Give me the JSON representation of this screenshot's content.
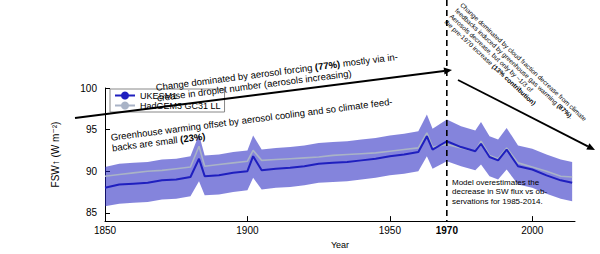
{
  "chart_data": {
    "type": "line",
    "x_label": "Year",
    "y_label": "FSW↑ (W m⁻²)",
    "x": [
      1850,
      1855,
      1860,
      1865,
      1870,
      1875,
      1880,
      1883,
      1885,
      1890,
      1895,
      1900,
      1902,
      1905,
      1910,
      1915,
      1920,
      1925,
      1930,
      1935,
      1940,
      1945,
      1950,
      1955,
      1960,
      1963,
      1965,
      1970,
      1975,
      1980,
      1982,
      1985,
      1988,
      1991,
      1995,
      2000,
      2005,
      2010,
      2014
    ],
    "xlim": [
      1850,
      2015
    ],
    "xticks": [
      1850,
      1900,
      1950,
      2000
    ],
    "ylim": [
      84,
      100
    ],
    "yticks": [
      85,
      90,
      95,
      100
    ],
    "grid": false,
    "legend": "upper left",
    "series": [
      {
        "name": "UKESM1",
        "color": "#1f1fbf",
        "values": [
          88.0,
          88.4,
          88.5,
          88.6,
          88.9,
          89.0,
          89.3,
          91.5,
          89.4,
          89.5,
          89.8,
          90.0,
          91.8,
          90.1,
          90.3,
          90.4,
          90.6,
          90.9,
          91.0,
          91.1,
          91.3,
          91.5,
          91.8,
          92.0,
          92.3,
          94.2,
          92.6,
          93.6,
          92.9,
          92.4,
          93.3,
          91.7,
          91.3,
          92.6,
          90.6,
          90.2,
          89.5,
          88.9,
          88.6
        ],
        "lower": [
          85.8,
          86.1,
          86.2,
          86.3,
          86.6,
          86.7,
          87.0,
          88.8,
          87.1,
          87.2,
          87.5,
          87.7,
          89.2,
          87.8,
          88.0,
          88.1,
          88.3,
          88.6,
          88.7,
          88.8,
          89.0,
          89.2,
          89.5,
          89.7,
          90.0,
          91.8,
          90.3,
          91.2,
          90.6,
          90.1,
          90.8,
          89.4,
          89.0,
          90.2,
          88.4,
          88.0,
          87.3,
          86.7,
          86.4
        ],
        "upper": [
          90.5,
          90.9,
          91.0,
          91.1,
          91.4,
          91.5,
          91.8,
          94.4,
          91.9,
          92.0,
          92.3,
          92.5,
          94.3,
          92.6,
          92.8,
          92.9,
          93.1,
          93.4,
          93.5,
          93.6,
          93.8,
          94.0,
          94.3,
          94.5,
          94.8,
          96.8,
          95.1,
          96.2,
          95.4,
          94.9,
          95.9,
          94.2,
          93.8,
          95.2,
          93.1,
          92.7,
          92.0,
          91.4,
          91.1
        ]
      },
      {
        "name": "HadGEM3 GC31 LL",
        "color": "#a9b3c6",
        "values": [
          89.4,
          89.6,
          89.8,
          90.0,
          90.1,
          90.3,
          90.5,
          93.0,
          90.6,
          90.8,
          91.0,
          91.2,
          92.5,
          91.3,
          91.4,
          91.5,
          91.6,
          91.7,
          91.9,
          92.0,
          92.1,
          92.2,
          92.4,
          92.6,
          92.8,
          94.6,
          92.9,
          93.2,
          92.8,
          92.4,
          93.6,
          91.9,
          91.5,
          92.8,
          91.0,
          90.5,
          90.0,
          89.4,
          89.3
        ]
      }
    ],
    "annotations": [
      {
        "text": "Change dominated by aerosol forcing (77%) mostly via in-\ncrease in droplet number (aerosols increasing)",
        "bold": [
          "(77%)"
        ]
      },
      {
        "text": "Greenhouse warming offset by aerosol cooling and so climate feed-\nbacks are small (23%)",
        "bold": [
          "(23%)"
        ]
      },
      {
        "text": "Change dominated by cloud fraction decrease from climate\nfeedbacks induced by greenhouse gas warming (87%).\nAerosols decrease, but only by ~1/3 of\nthe pre-1970 increase (13% contribution)",
        "bold": [
          "(87%)",
          "(13% contribution)"
        ]
      },
      {
        "text": "Model overestimates the\ndecrease in SW flux vs ob-\nservations for 1985-2014.",
        "bold": []
      },
      {
        "text": "1970",
        "x": 1970,
        "bold": [
          "1970"
        ]
      }
    ]
  }
}
